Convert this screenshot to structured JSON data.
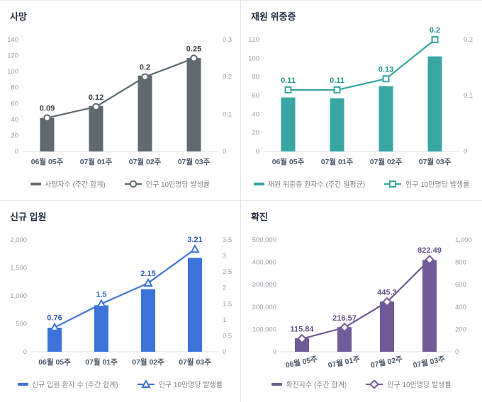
{
  "chart_data": [
    {
      "type": "bar+line",
      "title": "사망",
      "categories": [
        "06월 05주",
        "07월 01주",
        "07월 02주",
        "07월 03주"
      ],
      "series": [
        {
          "name": "사망자수 (주간 합계)",
          "type": "bar",
          "axis": "left",
          "values": [
            42,
            57,
            95,
            117
          ]
        },
        {
          "name": "인구 10만명당 발생률",
          "type": "line",
          "axis": "right",
          "marker": "circle",
          "values": [
            0.09,
            0.12,
            0.2,
            0.25
          ]
        }
      ],
      "left_axis": {
        "min": 0,
        "max": 140,
        "ticks": [
          0,
          20,
          40,
          60,
          80,
          100,
          120,
          140
        ]
      },
      "right_axis": {
        "min": 0,
        "max": 0.3,
        "ticks": [
          0,
          0.1,
          0.2,
          0.3
        ]
      },
      "color": "#5e6a6e",
      "value_label_color": "#3d4345",
      "x_label_rotate": 0,
      "legend_position": "bottom",
      "grid": false
    },
    {
      "type": "bar+line",
      "title": "재원 위중증",
      "categories": [
        "06월 05주",
        "07월 01주",
        "07월 02주",
        "07월 03주"
      ],
      "series": [
        {
          "name": "재원 위중증 환자수 (주간 일평균)",
          "type": "bar",
          "axis": "left",
          "values": [
            58,
            57,
            70,
            102
          ]
        },
        {
          "name": "인구 10만명당 발생률",
          "type": "line",
          "axis": "right",
          "marker": "square",
          "values": [
            0.11,
            0.11,
            0.13,
            0.2
          ]
        }
      ],
      "left_axis": {
        "min": 0,
        "max": 120,
        "ticks": [
          0,
          20,
          40,
          60,
          80,
          100,
          120
        ]
      },
      "right_axis": {
        "min": 0,
        "max": 0.2,
        "ticks": [
          0,
          0.1,
          0.2
        ]
      },
      "color": "#38a6a2",
      "value_label_color": "#23918d",
      "x_label_rotate": 0,
      "legend_position": "bottom",
      "grid": false
    },
    {
      "type": "bar+line",
      "title": "신규 입원",
      "categories": [
        "06월 05주",
        "07월 01주",
        "07월 02주",
        "07월 03주"
      ],
      "series": [
        {
          "name": "신규 입원 환자 수 (주간 합계)",
          "type": "bar",
          "axis": "left",
          "values": [
            430,
            830,
            1120,
            1680
          ]
        },
        {
          "name": "인구 10만명당 발생률",
          "type": "line",
          "axis": "right",
          "marker": "triangle",
          "values": [
            0.76,
            1.5,
            2.15,
            3.21
          ]
        }
      ],
      "left_axis": {
        "min": 0,
        "max": 2000,
        "ticks": [
          0,
          500,
          1000,
          1500,
          2000
        ]
      },
      "right_axis": {
        "min": 0,
        "max": 3.5,
        "ticks": [
          0,
          0.5,
          1,
          1.5,
          2,
          2.5,
          3,
          3.5
        ]
      },
      "color": "#3d74d9",
      "value_label_color": "#2f5fc4",
      "x_label_rotate": 0,
      "legend_position": "bottom",
      "grid": false
    },
    {
      "type": "bar+line",
      "title": "확진",
      "categories": [
        "06월 05주",
        "07월 01주",
        "07월 02주",
        "07월 03주"
      ],
      "series": [
        {
          "name": "확진자수 (주간 합계)",
          "type": "bar",
          "axis": "left",
          "values": [
            60000,
            110000,
            225000,
            410000
          ]
        },
        {
          "name": "인구 10만명당 발생률",
          "type": "line",
          "axis": "right",
          "marker": "diamond",
          "values": [
            115.84,
            216.57,
            445.3,
            822.49
          ]
        }
      ],
      "left_axis": {
        "min": 0,
        "max": 500000,
        "ticks": [
          0,
          100000,
          200000,
          300000,
          400000,
          500000
        ]
      },
      "right_axis": {
        "min": 0,
        "max": 1000,
        "ticks": [
          0,
          200,
          400,
          600,
          800,
          1000
        ]
      },
      "color": "#6f5b97",
      "value_label_color": "#63518a",
      "x_label_rotate": -12,
      "legend_position": "bottom",
      "grid": false
    }
  ]
}
